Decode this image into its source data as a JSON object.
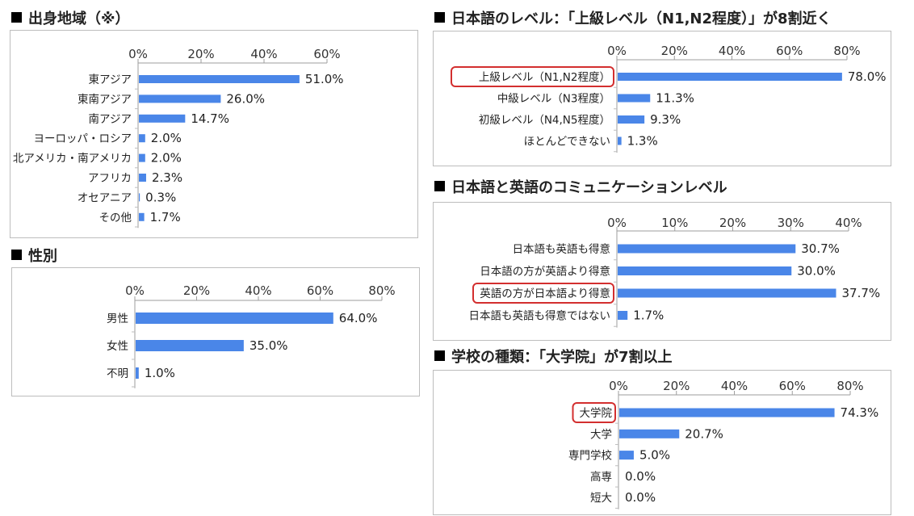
{
  "chart_data": [
    {
      "id": "origin",
      "type": "bar",
      "title": "出身地域（※）",
      "ticks": [
        "0%",
        "20%",
        "40%",
        "60%"
      ],
      "xlim": [
        0,
        60
      ],
      "categories": [
        "東アジア",
        "東南アジア",
        "南アジア",
        "ヨーロッパ・ロシア",
        "北アメリカ・南アメリカ",
        "アフリカ",
        "オセアニア",
        "その他"
      ],
      "values": [
        51.0,
        26.0,
        14.7,
        2.0,
        2.0,
        2.3,
        0.3,
        1.7
      ],
      "labels": [
        "51.0%",
        "26.0%",
        "14.7%",
        "2.0%",
        "2.0%",
        "2.3%",
        "0.3%",
        "1.7%"
      ],
      "highlight": [],
      "bar_color": "#4a86e8"
    },
    {
      "id": "gender",
      "type": "bar",
      "title": "性別",
      "ticks": [
        "0%",
        "20%",
        "40%",
        "60%",
        "80%"
      ],
      "xlim": [
        0,
        80
      ],
      "categories": [
        "男性",
        "女性",
        "不明"
      ],
      "values": [
        64.0,
        35.0,
        1.0
      ],
      "labels": [
        "64.0%",
        "35.0%",
        "1.0%"
      ],
      "highlight": [],
      "bar_color": "#4a86e8"
    },
    {
      "id": "japanese",
      "type": "bar",
      "title": "日本語のレベル：「上級レベル（N1,N2程度）」が8割近く",
      "ticks": [
        "0%",
        "20%",
        "40%",
        "60%",
        "80%"
      ],
      "xlim": [
        0,
        80
      ],
      "categories": [
        "上級レベル（N1,N2程度）",
        "中級レベル（N3程度）",
        "初級レベル（N4,N5程度）",
        "ほとんどできない"
      ],
      "values": [
        78.0,
        11.3,
        9.3,
        1.3
      ],
      "labels": [
        "78.0%",
        "11.3%",
        "9.3%",
        "1.3%"
      ],
      "highlight": [
        0
      ],
      "bar_color": "#4a86e8"
    },
    {
      "id": "communication",
      "type": "bar",
      "title": "日本語と英語のコミュニケーションレベル",
      "ticks": [
        "0%",
        "10%",
        "20%",
        "30%",
        "40%"
      ],
      "xlim": [
        0,
        40
      ],
      "categories": [
        "日本語も英語も得意",
        "日本語の方が英語より得意",
        "英語の方が日本語より得意",
        "日本語も英語も得意ではない"
      ],
      "values": [
        30.7,
        30.0,
        37.7,
        1.7
      ],
      "labels": [
        "30.7%",
        "30.0%",
        "37.7%",
        "1.7%"
      ],
      "highlight": [
        2
      ],
      "bar_color": "#4a86e8"
    },
    {
      "id": "school",
      "type": "bar",
      "title": "学校の種類：「大学院」が7割以上",
      "ticks": [
        "0%",
        "20%",
        "40%",
        "60%",
        "80%"
      ],
      "xlim": [
        0,
        80
      ],
      "categories": [
        "大学院",
        "大学",
        "専門学校",
        "高専",
        "短大"
      ],
      "values": [
        74.3,
        20.7,
        5.0,
        0.0,
        0.0
      ],
      "labels": [
        "74.3%",
        "20.7%",
        "5.0%",
        "0.0%",
        "0.0%"
      ],
      "highlight": [
        0
      ],
      "bar_color": "#4a86e8"
    }
  ]
}
